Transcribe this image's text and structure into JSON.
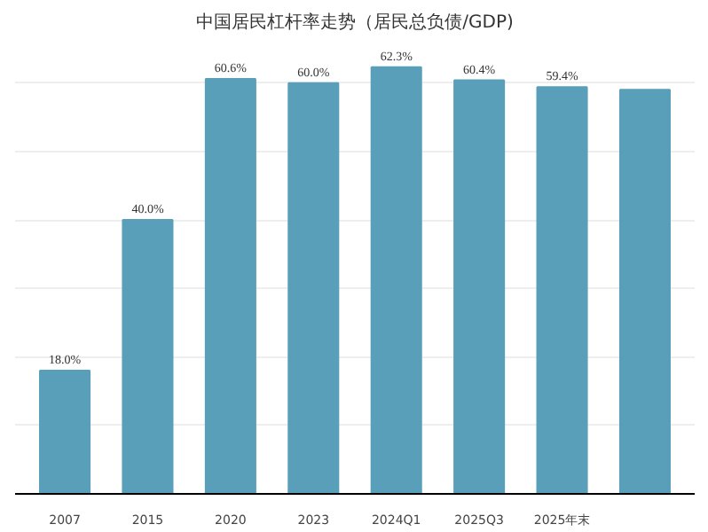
{
  "chart_data": {
    "type": "bar",
    "title": "中国居民杠杆率走势（居民总负债/GDP)",
    "categories": [
      "2007",
      "2015",
      "2020",
      "2023",
      "2024Q1",
      "2025Q3",
      "2025年末",
      null
    ],
    "values": [
      18.0,
      40.0,
      60.6,
      60.0,
      62.3,
      60.4,
      59.4,
      59.0
    ],
    "value_labels": [
      "18.0%",
      "40.0%",
      "60.6%",
      "60.0%",
      "62.3%",
      "60.4%",
      "59.4%",
      null
    ],
    "color": "#5a9fba",
    "grid": "y",
    "tick_labels": "x"
  }
}
